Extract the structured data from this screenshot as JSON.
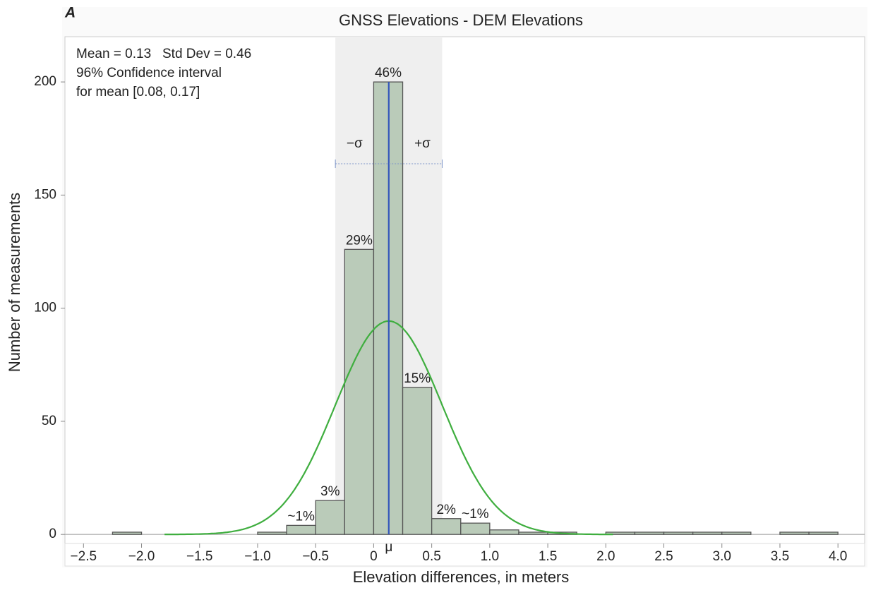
{
  "chart_data": {
    "type": "histogram",
    "panel_label": "A",
    "title": "GNSS Elevations - DEM Elevations",
    "x_label": "Elevation differences, in meters",
    "y_label": "Number of measurements",
    "stats_text": [
      "Mean = 0.13   Std Dev = 0.46",
      "96% Confidence interval",
      "for mean [0.08, 0.17]"
    ],
    "bins": [
      -2.25,
      -2.0,
      -1.75,
      -1.5,
      -1.25,
      -1.0,
      -0.75,
      -0.5,
      -0.25,
      0,
      0.25,
      0.5,
      0.75,
      1.0,
      1.25,
      1.5,
      1.75,
      2.0,
      2.25,
      2.5,
      2.75,
      3.0,
      3.25,
      3.5,
      3.75,
      4.0
    ],
    "values": [
      1,
      0,
      0,
      0,
      0,
      1,
      4,
      15,
      126,
      200,
      65,
      7,
      5,
      2,
      1,
      1,
      0,
      1,
      1,
      1,
      1,
      1,
      0,
      1,
      1
    ],
    "bar_labels": [
      null,
      null,
      null,
      null,
      null,
      null,
      "~1%",
      "3%",
      "29%",
      "46%",
      "15%",
      "2%",
      "~1%",
      null,
      null,
      null,
      null,
      null,
      null,
      null,
      null,
      null,
      null,
      null,
      null
    ],
    "color": "#bacbb9",
    "fit": {
      "mean": 0.13,
      "sd": 0.46,
      "color": "#3fae3f",
      "mean_color": "#3355bb",
      "band_color": "#efefef"
    },
    "mean_symbol": "μ",
    "minus_sigma": "−σ",
    "plus_sigma": "+σ",
    "xlim": [
      -2.66,
      4.23
    ],
    "ylim": [
      -4,
      220
    ],
    "xticks": [
      {
        "value": -2.5,
        "label": "−2.5"
      },
      {
        "value": -2.0,
        "label": "−2.0"
      },
      {
        "value": -1.5,
        "label": "−1.5"
      },
      {
        "value": -1.0,
        "label": "−1.0"
      },
      {
        "value": -0.5,
        "label": "−0.5"
      },
      0,
      0.5,
      {
        "value": 1.0,
        "label": "1.0"
      },
      1.5,
      {
        "value": 2.0,
        "label": "2.0"
      },
      2.5,
      {
        "value": 3.0,
        "label": "3.0"
      },
      3.5,
      {
        "value": 4.0,
        "label": "4.0"
      }
    ],
    "yticks": [
      0,
      50,
      100,
      150,
      200
    ]
  }
}
